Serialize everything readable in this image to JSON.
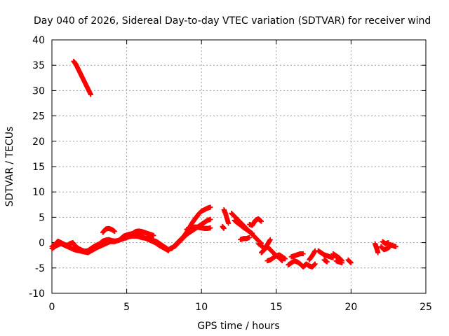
{
  "chart_data": {
    "type": "scatter",
    "title": "Day 040 of 2026, Sidereal Day-to-day VTEC variation (SDTVAR) for receiver wind",
    "xlabel": "GPS time / hours",
    "ylabel": "SDTVAR / TECUs",
    "xlim": [
      0,
      25
    ],
    "ylim": [
      -10,
      40
    ],
    "xticks": [
      0,
      5,
      10,
      15,
      20,
      25
    ],
    "yticks": [
      -10,
      -5,
      0,
      5,
      10,
      15,
      20,
      25,
      30,
      35,
      40
    ],
    "grid": true,
    "marker": "+",
    "color": "#ff0000",
    "series": [
      {
        "name": "SDTVAR",
        "tracks": [
          {
            "x": [
              1.45,
              1.6,
              1.8,
              2.0,
              2.2,
              2.4,
              2.6
            ],
            "y": [
              35.8,
              35.2,
              34.0,
              32.8,
              31.6,
              30.4,
              29.2
            ]
          },
          {
            "x": [
              0.0,
              0.2,
              0.4,
              0.6,
              0.8,
              1.0,
              1.2,
              1.4,
              1.6,
              1.8,
              2.0,
              2.2,
              2.4,
              2.6,
              2.8,
              3.0,
              3.2,
              3.4,
              3.6,
              3.8,
              4.0,
              4.2,
              4.4,
              4.6,
              4.8,
              5.0,
              5.2,
              5.4,
              5.6,
              5.8,
              6.0,
              6.2,
              6.4,
              6.6,
              6.8,
              7.0,
              7.2,
              7.4,
              7.6,
              7.8,
              8.0
            ],
            "y": [
              -0.8,
              -0.4,
              0.3,
              0.0,
              -0.3,
              -0.6,
              -0.2,
              0.0,
              -0.8,
              -1.2,
              -1.5,
              -1.7,
              -1.6,
              -1.2,
              -0.8,
              -0.5,
              -0.2,
              0.3,
              0.5,
              0.6,
              0.4,
              0.3,
              0.4,
              0.6,
              0.8,
              1.0,
              1.2,
              1.3,
              1.3,
              1.2,
              1.0,
              0.9,
              0.8,
              0.6,
              0.4,
              0.2,
              -0.2,
              -0.6,
              -1.0,
              -1.4,
              -1.0
            ]
          },
          {
            "x": [
              0.0,
              0.3,
              0.6,
              0.9,
              1.2,
              1.5,
              1.8,
              2.1,
              2.4,
              2.7,
              3.0,
              3.3,
              3.6,
              3.9,
              4.2,
              4.5,
              4.8,
              5.1,
              5.4,
              5.7,
              6.0,
              6.3,
              6.6,
              6.9,
              7.2,
              7.5,
              7.8
            ],
            "y": [
              -1.2,
              -0.6,
              -0.2,
              -0.6,
              -1.0,
              -1.4,
              -1.6,
              -1.8,
              -2.0,
              -1.5,
              -1.0,
              -0.6,
              -0.2,
              0.2,
              0.2,
              0.5,
              1.3,
              1.6,
              1.8,
              1.6,
              1.2,
              0.8,
              0.4,
              0.0,
              -0.6,
              -1.1,
              -1.6
            ]
          },
          {
            "x": [
              3.4,
              3.6,
              3.8,
              4.0,
              4.2
            ],
            "y": [
              2.0,
              2.7,
              2.8,
              2.6,
              2.2
            ]
          },
          {
            "x": [
              5.2,
              5.4,
              5.6,
              5.8,
              6.0,
              6.2,
              6.4,
              6.6,
              6.8
            ],
            "y": [
              1.4,
              1.8,
              2.2,
              2.3,
              2.2,
              2.0,
              1.8,
              1.6,
              1.4
            ]
          },
          {
            "x": [
              8.0,
              8.2,
              8.4,
              8.6,
              8.8,
              9.0,
              9.2,
              9.4,
              9.6,
              9.8,
              10.0,
              10.2,
              10.4,
              10.6
            ],
            "y": [
              -1.2,
              -0.6,
              0.0,
              0.6,
              1.2,
              2.0,
              3.0,
              4.0,
              4.8,
              5.6,
              6.2,
              6.5,
              6.8,
              7.0
            ]
          },
          {
            "x": [
              8.2,
              8.4,
              8.6,
              8.8,
              9.0,
              9.2,
              9.4,
              9.6,
              9.8,
              10.0,
              10.2,
              10.4,
              10.6
            ],
            "y": [
              -0.8,
              -0.2,
              0.4,
              1.0,
              1.6,
              2.0,
              2.4,
              2.8,
              3.2,
              3.6,
              4.0,
              4.4,
              4.6
            ]
          },
          {
            "x": [
              9.0,
              9.2,
              9.4,
              9.6,
              9.8,
              10.0,
              10.2,
              10.4,
              10.6
            ],
            "y": [
              2.6,
              2.8,
              3.0,
              3.1,
              3.0,
              2.9,
              2.8,
              2.8,
              2.9
            ]
          },
          {
            "x": [
              11.5,
              11.6,
              11.8
            ],
            "y": [
              6.5,
              5.8,
              3.8
            ]
          },
          {
            "x": [
              11.4,
              11.5
            ],
            "y": [
              3.2,
              2.8
            ]
          },
          {
            "x": [
              12.0,
              12.2,
              12.4,
              12.6,
              12.8,
              13.0,
              13.2,
              13.4,
              13.6,
              13.8,
              14.0
            ],
            "y": [
              5.8,
              5.2,
              4.6,
              4.0,
              3.4,
              2.8,
              2.2,
              1.6,
              1.0,
              0.4,
              -0.2
            ]
          },
          {
            "x": [
              12.2,
              12.4,
              12.6,
              12.8,
              13.0,
              13.2,
              13.4
            ],
            "y": [
              4.4,
              3.9,
              3.5,
              3.0,
              2.6,
              2.2,
              1.8
            ]
          },
          {
            "x": [
              13.2,
              13.4,
              13.6,
              13.8,
              14.0
            ],
            "y": [
              3.6,
              3.4,
              4.4,
              4.7,
              4.2
            ]
          },
          {
            "x": [
              12.6,
              12.8,
              13.0,
              13.2
            ],
            "y": [
              0.6,
              0.8,
              0.8,
              1.0
            ]
          },
          {
            "x": [
              13.8,
              14.0,
              14.2,
              14.4,
              14.6
            ],
            "y": [
              -0.2,
              -0.6,
              -1.2,
              -0.4,
              0.6
            ]
          },
          {
            "x": [
              14.0,
              14.2,
              14.4,
              14.6,
              14.8,
              15.0,
              15.2,
              15.4
            ],
            "y": [
              -2.0,
              -1.4,
              -0.8,
              -1.4,
              -2.0,
              -2.6,
              -3.0,
              -3.6
            ]
          },
          {
            "x": [
              14.4,
              14.6,
              14.8,
              15.0,
              15.2,
              15.4,
              15.6
            ],
            "y": [
              -3.6,
              -3.4,
              -3.0,
              -2.6,
              -2.4,
              -2.8,
              -3.2
            ]
          },
          {
            "x": [
              15.8,
              16.0,
              16.2,
              16.4,
              16.6,
              16.8,
              17.0
            ],
            "y": [
              -4.4,
              -4.0,
              -3.6,
              -3.8,
              -4.2,
              -4.8,
              -4.2
            ]
          },
          {
            "x": [
              16.0,
              16.2,
              16.4,
              16.6,
              16.8
            ],
            "y": [
              -2.8,
              -2.6,
              -2.4,
              -2.2,
              -2.2
            ]
          },
          {
            "x": [
              17.2,
              17.4,
              17.6
            ],
            "y": [
              -3.4,
              -2.6,
              -1.6
            ]
          },
          {
            "x": [
              17.0,
              17.2,
              17.4,
              17.6
            ],
            "y": [
              -4.2,
              -4.6,
              -4.8,
              -4.2
            ]
          },
          {
            "x": [
              17.8,
              18.0,
              18.2,
              18.4,
              18.6,
              18.8
            ],
            "y": [
              -1.6,
              -2.0,
              -2.4,
              -2.6,
              -2.8,
              -3.0
            ]
          },
          {
            "x": [
              18.2,
              18.4
            ],
            "y": [
              -3.4,
              -3.8
            ]
          },
          {
            "x": [
              18.8,
              19.0,
              19.2,
              19.4
            ],
            "y": [
              -2.2,
              -2.6,
              -3.0,
              -3.6
            ]
          },
          {
            "x": [
              19.0,
              19.2,
              19.4
            ],
            "y": [
              -3.6,
              -3.8,
              -4.0
            ]
          },
          {
            "x": [
              19.8,
              20.0
            ],
            "y": [
              -3.4,
              -4.0
            ]
          },
          {
            "x": [
              21.6,
              21.7,
              21.8
            ],
            "y": [
              -0.2,
              -1.0,
              -2.0
            ]
          },
          {
            "x": [
              22.0,
              22.2,
              22.4,
              22.6
            ],
            "y": [
              -0.8,
              -1.4,
              -1.2,
              -0.8
            ]
          },
          {
            "x": [
              22.1,
              22.3,
              22.5
            ],
            "y": [
              0.2,
              -0.2,
              0.0
            ]
          },
          {
            "x": [
              22.6,
              22.8,
              23.0
            ],
            "y": [
              -0.4,
              -0.6,
              -0.8
            ]
          }
        ]
      }
    ]
  }
}
